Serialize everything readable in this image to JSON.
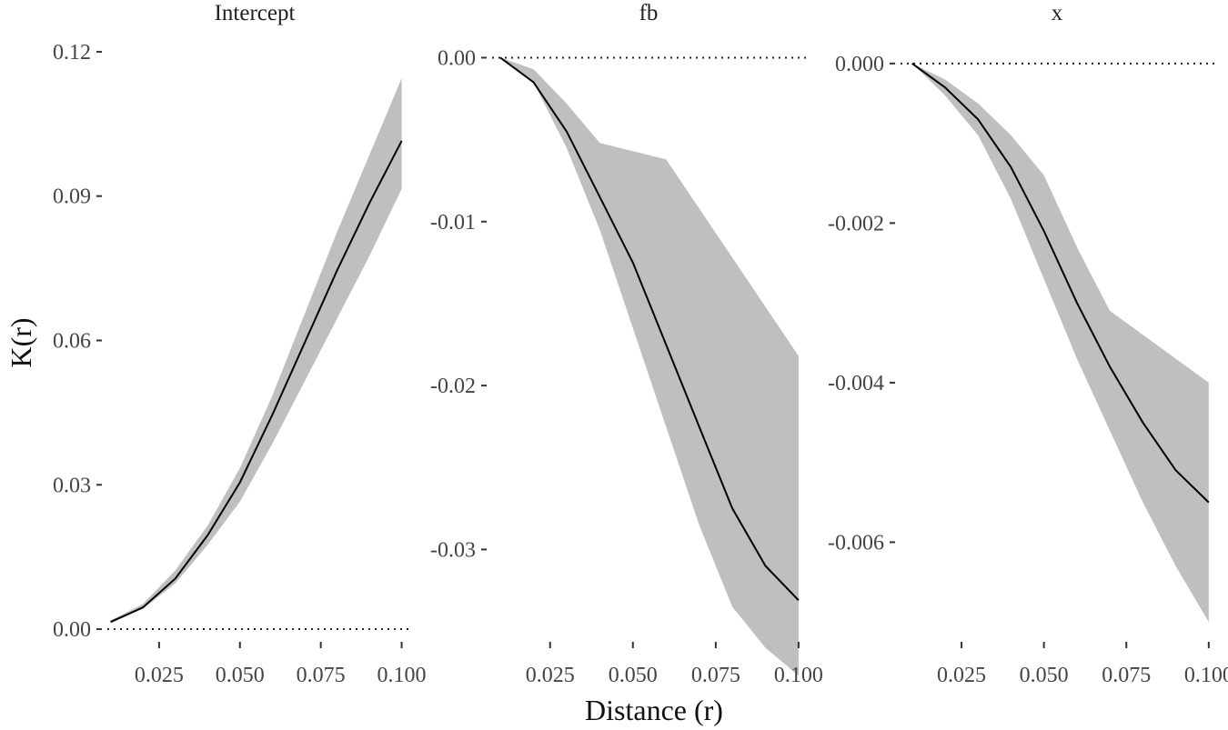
{
  "chart_data": {
    "type": "line",
    "xlabel": "Distance (r)",
    "ylabel": "K(r)",
    "panels": [
      {
        "title": "Intercept",
        "xlim": [
          0.009,
          0.1035
        ],
        "ylim": [
          -0.0015,
          0.1232
        ],
        "xticks": [
          "0.025",
          "0.050",
          "0.075",
          "0.100"
        ],
        "yticks": [
          {
            "value": 0,
            "label": "0.00"
          },
          {
            "value": 0.03,
            "label": "0.03"
          },
          {
            "value": 0.06,
            "label": "0.06"
          },
          {
            "value": 0.09,
            "label": "0.09"
          },
          {
            "value": 0.12,
            "label": "0.12"
          }
        ],
        "x": [
          0.01,
          0.02,
          0.03,
          0.04,
          0.05,
          0.06,
          0.07,
          0.08,
          0.09,
          0.1
        ],
        "estimate": [
          0.0015,
          0.0045,
          0.0105,
          0.0195,
          0.0305,
          0.0445,
          0.0595,
          0.0745,
          0.0885,
          0.1015
        ],
        "lower": [
          0.0012,
          0.0042,
          0.0095,
          0.0175,
          0.0265,
          0.0385,
          0.0515,
          0.0645,
          0.0775,
          0.0915
        ],
        "upper": [
          0.0018,
          0.0052,
          0.0122,
          0.0215,
          0.0335,
          0.0485,
          0.0655,
          0.0825,
          0.0985,
          0.1145
        ],
        "hline": 0
      },
      {
        "title": "fb",
        "xlim": [
          0.0075,
          0.1025
        ],
        "ylim": [
          -0.0353,
          0.0013
        ],
        "xticks": [
          "0.025",
          "0.050",
          "0.075",
          "0.100"
        ],
        "yticks": [
          {
            "value": 0,
            "label": "0.00"
          },
          {
            "value": -0.01,
            "label": "-0.01"
          },
          {
            "value": -0.02,
            "label": "-0.02"
          },
          {
            "value": -0.03,
            "label": "-0.03"
          }
        ],
        "x": [
          0.01,
          0.02,
          0.03,
          0.04,
          0.05,
          0.06,
          0.07,
          0.08,
          0.09,
          0.1
        ],
        "estimate": [
          0,
          -0.0015,
          -0.0045,
          -0.0085,
          -0.0125,
          -0.0175,
          -0.0225,
          -0.0275,
          -0.031,
          -0.0331
        ],
        "lower": [
          0,
          -0.0015,
          -0.0055,
          -0.0105,
          -0.0165,
          -0.0225,
          -0.0285,
          -0.0335,
          -0.036,
          -0.0377
        ],
        "upper": [
          0,
          -0.0007,
          -0.0028,
          -0.0052,
          -0.0057,
          -0.0062,
          -0.0092,
          -0.0122,
          -0.0152,
          -0.0182
        ],
        "hline": 0
      },
      {
        "title": "x",
        "xlim": [
          0.0065,
          0.1017
        ],
        "ylim": [
          -0.00718,
          0.00034
        ],
        "xticks": [
          "0.025",
          "0.050",
          "0.075",
          "0.100"
        ],
        "yticks": [
          {
            "value": 0,
            "label": "0.000"
          },
          {
            "value": -0.002,
            "label": "-0.002"
          },
          {
            "value": -0.004,
            "label": "-0.004"
          },
          {
            "value": -0.006,
            "label": "-0.006"
          }
        ],
        "x": [
          0.01,
          0.02,
          0.03,
          0.04,
          0.05,
          0.06,
          0.07,
          0.08,
          0.09,
          0.1
        ],
        "estimate": [
          0,
          -0.0003,
          -0.0007,
          -0.0013,
          -0.0021,
          -0.003,
          -0.0038,
          -0.0045,
          -0.0051,
          -0.0055
        ],
        "lower": [
          0,
          -0.0004,
          -0.0009,
          -0.0017,
          -0.0027,
          -0.0037,
          -0.0046,
          -0.0055,
          -0.0063,
          -0.007
        ],
        "upper": [
          0,
          -0.0002,
          -0.0005,
          -0.0009,
          -0.0014,
          -0.0023,
          -0.0031,
          -0.0034,
          -0.0037,
          -0.004
        ],
        "hline": 0
      }
    ]
  }
}
